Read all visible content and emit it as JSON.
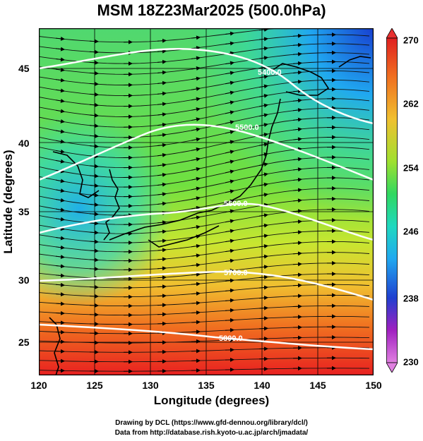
{
  "title": "MSM 18Z23Mar2025 (500.0hPa)",
  "x_axis": {
    "label": "Longitude (degrees)",
    "ticks": [
      "120",
      "125",
      "130",
      "135",
      "140",
      "145",
      "150"
    ],
    "range": [
      120,
      150
    ]
  },
  "y_axis": {
    "label": "Latitude  (degrees)",
    "ticks": [
      "25",
      "30",
      "35",
      "40",
      "45"
    ],
    "range": [
      22.5,
      47.6
    ]
  },
  "colorbar": {
    "ticks": [
      "270",
      "262",
      "254",
      "246",
      "238",
      "230"
    ],
    "range": [
      230,
      270
    ],
    "colors": [
      "#e080e0",
      "#a020c0",
      "#2040d0",
      "#20a8f0",
      "#20d8c0",
      "#30d860",
      "#70e040",
      "#c0e830",
      "#f0c030",
      "#f07020",
      "#e02020"
    ]
  },
  "contours": [
    {
      "label": "5400.0"
    },
    {
      "label": "5500.0"
    },
    {
      "label": "5600.0"
    },
    {
      "label": "5700.0"
    },
    {
      "label": "5800.0"
    }
  ],
  "footer": {
    "line1": "Drawing by DCL (https://www.gfd-dennou.org/library/dcl/)",
    "line2": "Data from http://database.rish.kyoto-u.ac.jp/arch/jmadata/"
  }
}
